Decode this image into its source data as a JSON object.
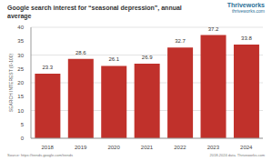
{
  "chart_data": {
    "type": "bar",
    "title": "Google search interest for “seasonal depression”, annual average",
    "y_label": "SEARCH INTEREST (0-100)",
    "annotations": [
      "Thriveworks",
      "thriveworks.com",
      "Source: https://trends.google.com/trends",
      "2018-2024 data. Thriveworks.com"
    ],
    "categories": [
      "2018",
      "2019",
      "2020",
      "2021",
      "2022",
      "2023",
      "2024"
    ],
    "values": [
      23.3,
      28.6,
      26.1,
      26.9,
      32.7,
      37.2,
      33.8
    ],
    "color": "#c0312b",
    "ylim": [
      0,
      40
    ],
    "yticks": [
      0,
      5,
      10,
      15,
      20,
      25,
      30,
      35,
      40
    ],
    "grid": true,
    "data_labels": true
  }
}
